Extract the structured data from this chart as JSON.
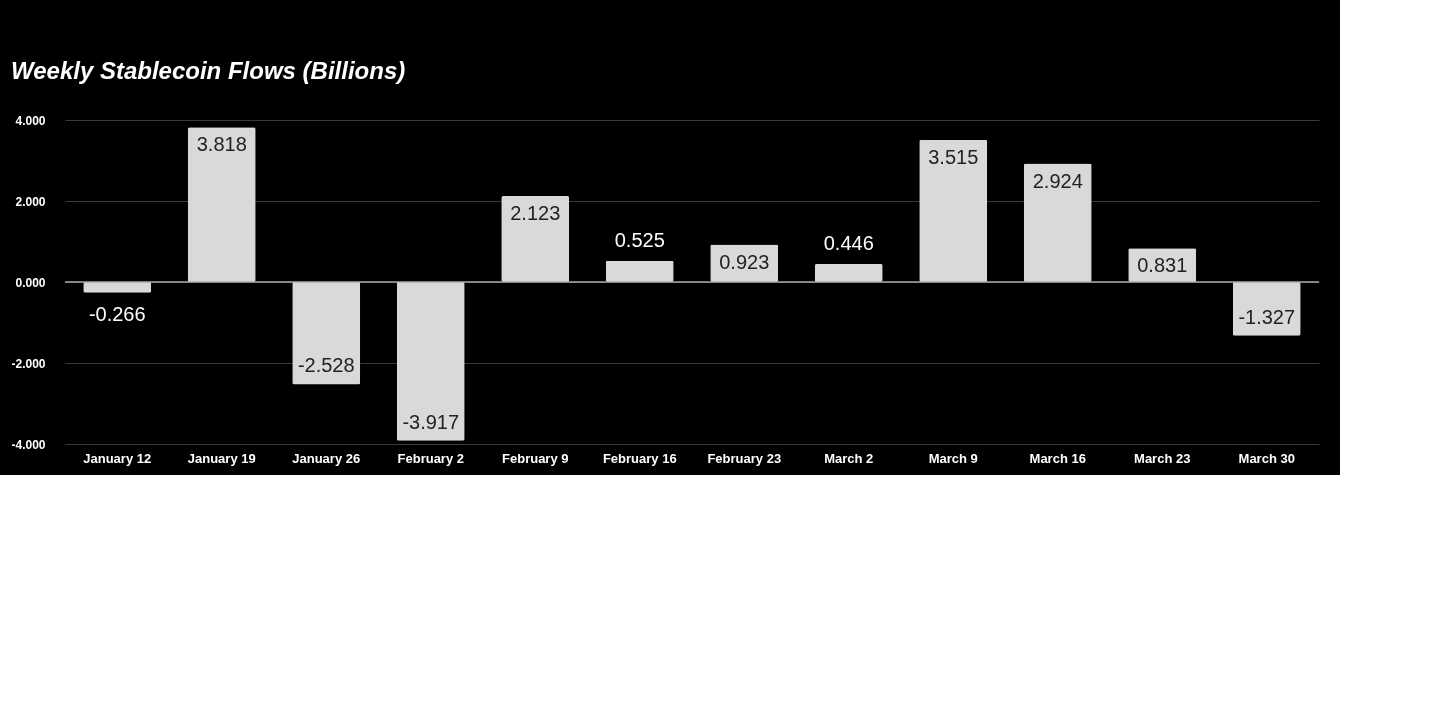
{
  "chart_data": {
    "type": "bar",
    "title": "Weekly Stablecoin Flows (Billions)",
    "categories": [
      "January 12",
      "January 19",
      "January 26",
      "February 2",
      "February 9",
      "February 16",
      "February 23",
      "March 2",
      "March 9",
      "March 16",
      "March 23",
      "March 30"
    ],
    "values": [
      -0.266,
      3.818,
      -2.528,
      -3.917,
      2.123,
      0.525,
      0.923,
      0.446,
      3.515,
      2.924,
      0.831,
      -1.327
    ],
    "value_labels": [
      "-0.266",
      "3.818",
      "-2.528",
      "-3.917",
      "2.123",
      "0.525",
      "0.923",
      "0.446",
      "3.515",
      "2.924",
      "0.831",
      "-1.327"
    ],
    "color": "#d9d9d9",
    "ylim": [
      -4,
      4
    ],
    "yticks": [
      {
        "value": -4,
        "label": "-4.000"
      },
      {
        "value": -2,
        "label": "-2.000"
      },
      {
        "value": 0,
        "label": "0.000"
      },
      {
        "value": 2,
        "label": "2.000"
      },
      {
        "value": 4,
        "label": "4.000"
      }
    ],
    "grid": "y"
  }
}
